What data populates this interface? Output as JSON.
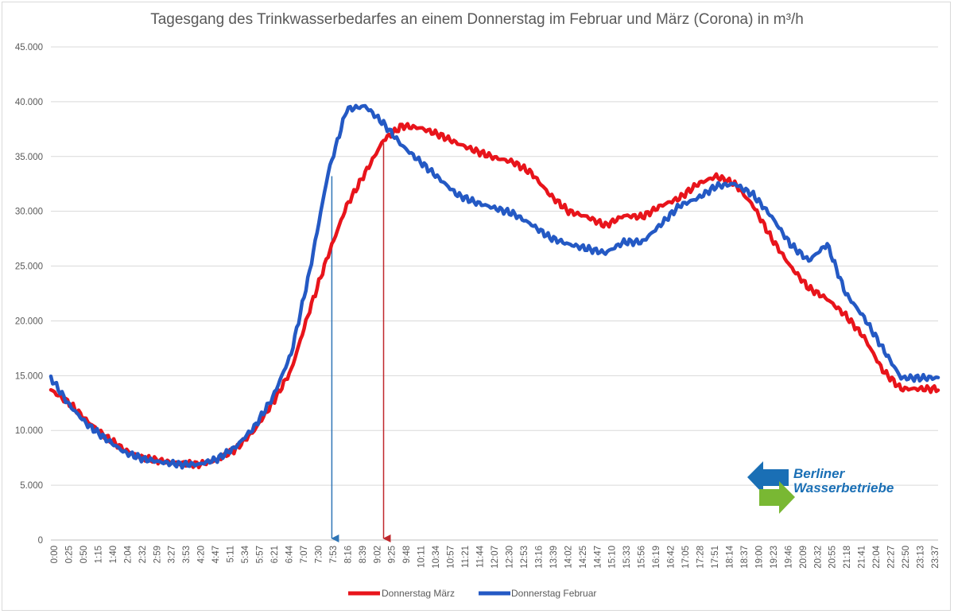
{
  "chart_data": {
    "type": "line",
    "title": "Tagesgang des Trinkwasserbedarfes an einem Donnerstag im Februar und März (Corona) in m³/h",
    "xlabel": "",
    "ylabel": "",
    "ylim": [
      0,
      45000
    ],
    "y_ticks": [
      "0",
      "5.000",
      "10.000",
      "15.000",
      "20.000",
      "25.000",
      "30.000",
      "35.000",
      "40.000",
      "45.000"
    ],
    "x_tick_labels": [
      "0:00",
      "0:25",
      "0:50",
      "1:15",
      "1:40",
      "2:04",
      "2:32",
      "2:59",
      "3:27",
      "3:53",
      "4:20",
      "4:47",
      "5:11",
      "5:34",
      "5:57",
      "6:21",
      "6:44",
      "7:07",
      "7:30",
      "7:53",
      "8:16",
      "8:39",
      "9:02",
      "9:25",
      "9:48",
      "10:11",
      "10:34",
      "10:57",
      "11:21",
      "11:44",
      "12:07",
      "12:30",
      "12:53",
      "13:16",
      "13:39",
      "14:02",
      "14:25",
      "14:47",
      "15:10",
      "15:33",
      "15:56",
      "16:19",
      "16:42",
      "17:05",
      "17:28",
      "17:51",
      "18:14",
      "18:37",
      "19:00",
      "19:23",
      "19:46",
      "20:09",
      "20:32",
      "20:55",
      "21:18",
      "21:41",
      "22:04",
      "22:27",
      "22:50",
      "23:13",
      "23:37"
    ],
    "x_hours": [
      0,
      0.5,
      1,
      1.5,
      2,
      2.5,
      3,
      3.5,
      4,
      4.5,
      5,
      5.5,
      6,
      6.5,
      7,
      7.5,
      8,
      8.5,
      9,
      9.5,
      10,
      10.5,
      11,
      11.5,
      12,
      12.5,
      13,
      13.5,
      14,
      14.5,
      15,
      15.5,
      16,
      16.5,
      17,
      17.5,
      18,
      18.5,
      19,
      19.5,
      20,
      20.5,
      21,
      21.5,
      22,
      22.5,
      23,
      23.5,
      24
    ],
    "series": [
      {
        "name": "Donnerstag März",
        "color": "#e8141b",
        "values": [
          13700,
          12500,
          10800,
          9400,
          8200,
          7500,
          7200,
          7000,
          6900,
          7300,
          8300,
          10000,
          12500,
          15500,
          21000,
          26000,
          30500,
          33500,
          36500,
          37800,
          37600,
          37000,
          36200,
          35500,
          34900,
          34500,
          33500,
          31500,
          30000,
          29500,
          28700,
          29600,
          29500,
          30500,
          31200,
          32500,
          33200,
          32500,
          30500,
          27500,
          25000,
          23000,
          22000,
          20500,
          18500,
          15500,
          13800,
          13800,
          13800
        ]
      },
      {
        "name": "Donnerstag Februar",
        "color": "#2459c4",
        "values": [
          14800,
          12300,
          10500,
          9200,
          8000,
          7400,
          7100,
          6900,
          6900,
          7400,
          8500,
          10300,
          13000,
          17000,
          24500,
          33500,
          39300,
          39600,
          38000,
          36000,
          34500,
          33000,
          31500,
          30800,
          30300,
          29800,
          28800,
          27600,
          27000,
          26600,
          26200,
          27200,
          27200,
          28800,
          30500,
          31200,
          32300,
          32500,
          31500,
          29500,
          27000,
          25500,
          27000,
          22500,
          20300,
          17500,
          14800,
          14800,
          14800
        ]
      }
    ],
    "markers": [
      {
        "label": "7:30",
        "hour": 7.6,
        "color": "#2e75b6"
      },
      {
        "label": "9:02",
        "hour": 9.0,
        "color": "#c0282d"
      }
    ],
    "grid": true,
    "legend": "bottom-center"
  },
  "logo": {
    "line1": "Berliner",
    "line2": "Wasserbetriebe"
  }
}
